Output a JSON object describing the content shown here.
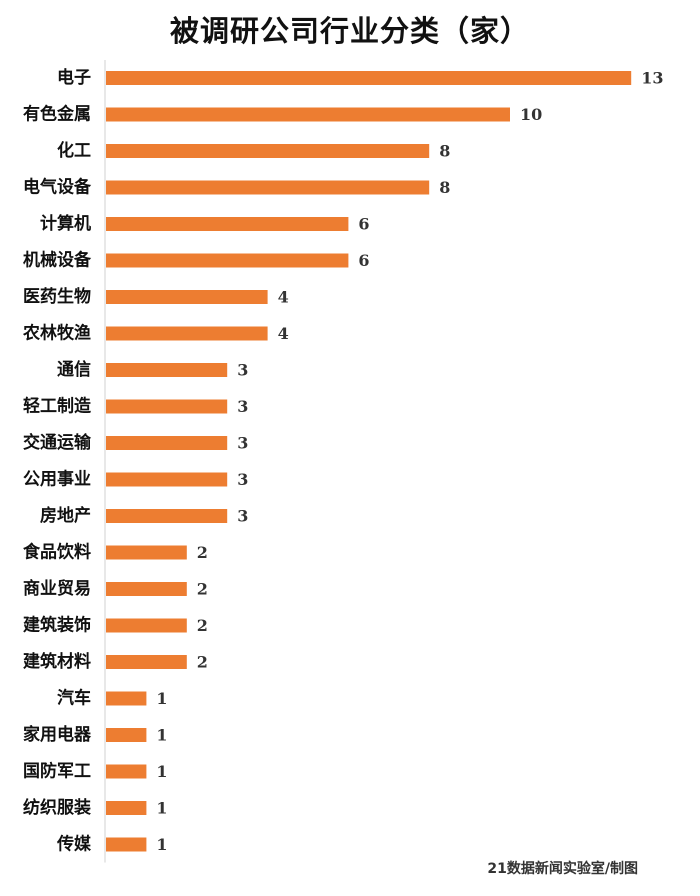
{
  "chart_data": {
    "type": "bar",
    "orientation": "horizontal",
    "title": "被调研公司行业分类（家）",
    "categories": [
      "电子",
      "有色金属",
      "化工",
      "电气设备",
      "计算机",
      "机械设备",
      "医药生物",
      "农林牧渔",
      "通信",
      "轻工制造",
      "交通运输",
      "公用事业",
      "房地产",
      "食品饮料",
      "商业贸易",
      "建筑装饰",
      "建筑材料",
      "汽车",
      "家用电器",
      "国防军工",
      "纺织服装",
      "传媒"
    ],
    "values": [
      13,
      10,
      8,
      8,
      6,
      6,
      4,
      4,
      3,
      3,
      3,
      3,
      3,
      2,
      2,
      2,
      2,
      1,
      1,
      1,
      1,
      1
    ],
    "bar_color": "#ED7D31",
    "grid": false,
    "legend": "none"
  },
  "credit": "21数据新闻实验室/制图"
}
